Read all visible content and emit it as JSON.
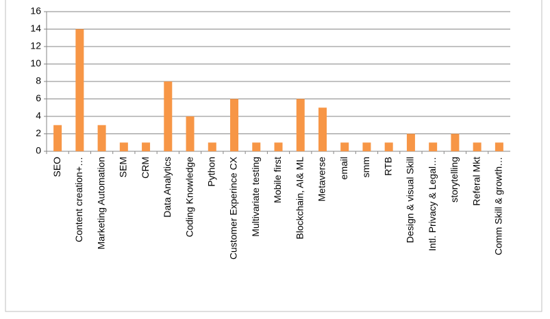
{
  "chart_data": {
    "type": "bar",
    "categories": [
      "SEO",
      "Content creation+…",
      "Marketing Automation",
      "SEM",
      "CRM",
      "Data Analytics",
      "Coding Knowledge",
      "Python",
      "Customer Experince CX",
      "Multivariate testing",
      "Mobile first",
      "Blockchain, AI& ML",
      "Metaverse",
      "email",
      "smm",
      "RTB",
      "Design & visual Skill",
      "Intl. Privacy & Legal…",
      "storytelling",
      "Referal Mkt",
      "Comm Skill & growth…"
    ],
    "values": [
      3,
      14,
      3,
      1,
      1,
      8,
      4,
      1,
      6,
      1,
      1,
      6,
      5,
      1,
      1,
      1,
      2,
      1,
      2,
      1,
      1
    ],
    "color": "#f79646",
    "ylim": [
      0,
      16
    ],
    "yticks": [
      0,
      2,
      4,
      6,
      8,
      10,
      12,
      14,
      16
    ],
    "grid": true
  }
}
